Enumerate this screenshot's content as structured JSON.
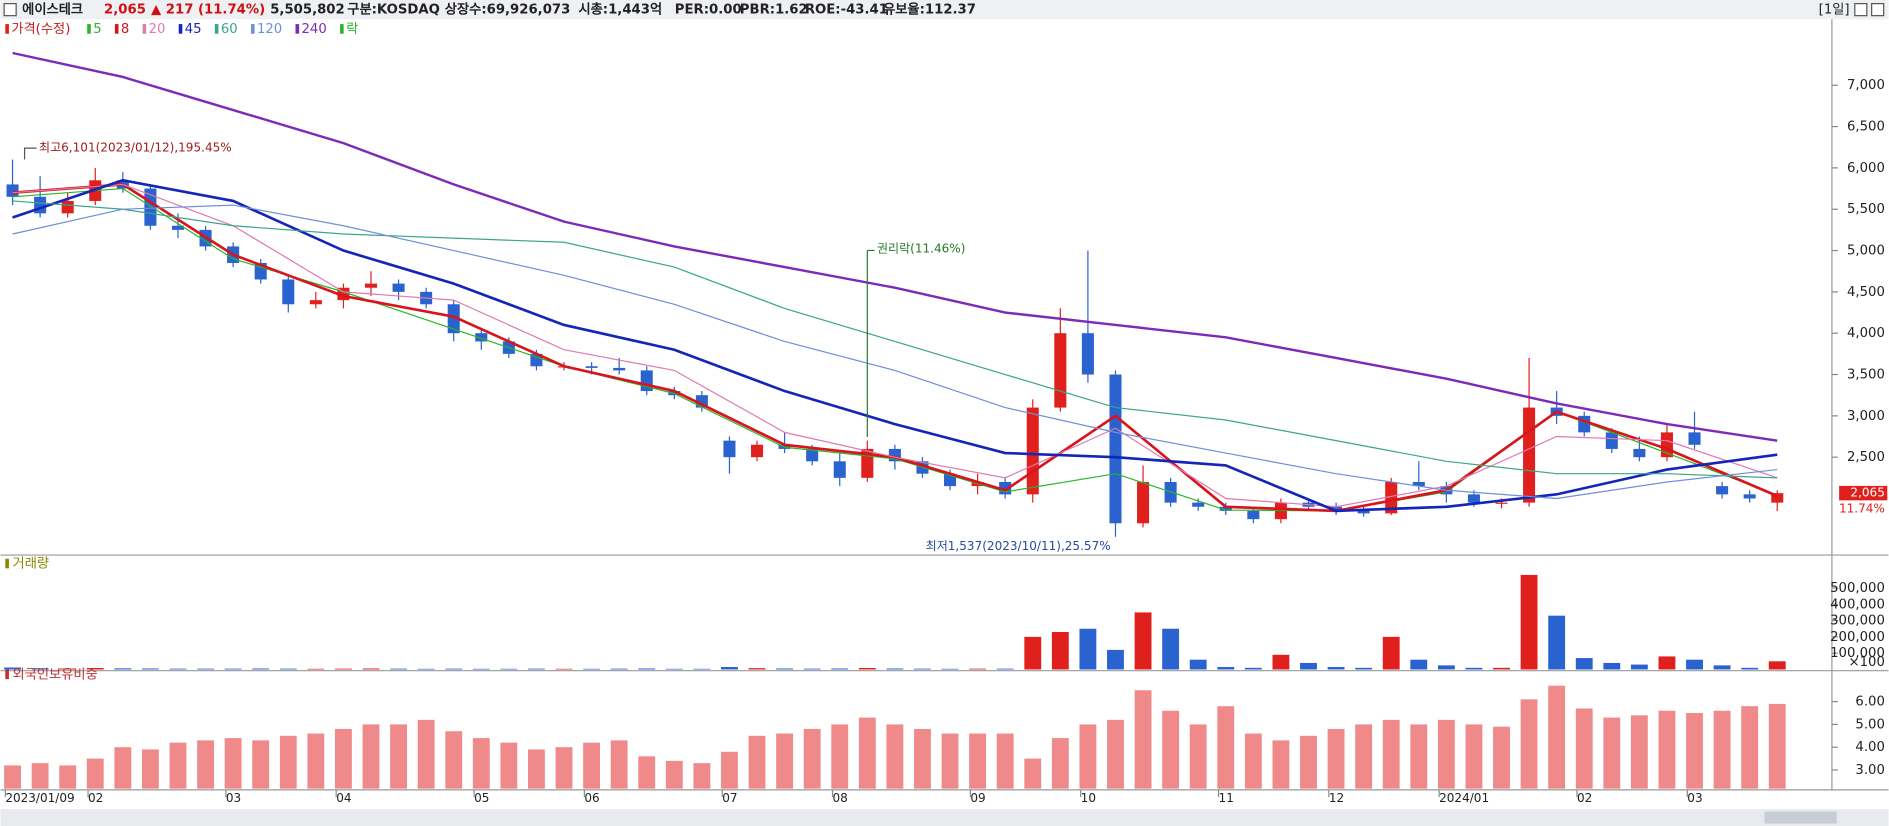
{
  "header": {
    "name": "에이스테크",
    "price": "2,065",
    "change": "▲ 217",
    "change_pct": "(11.74%)",
    "volume": "5,505,802",
    "market": "구분:KOSDAQ",
    "shares": "상장수:69,926,073",
    "cap": "시총:1,443억",
    "per": "PER:0.00",
    "pbr": "PBR:1.62",
    "roe": "ROE:-43.41",
    "reserve": "유보율:112.37",
    "period": "[1일]"
  },
  "chart_data": [
    {
      "type": "candlestick",
      "title": "가격(수정)",
      "legend_extra": "락",
      "up_color": "#e0201c",
      "down_color": "#2a62d0",
      "categories": [
        "2023/01/09",
        null,
        null,
        "02",
        null,
        null,
        null,
        null,
        "03",
        null,
        null,
        null,
        "04",
        null,
        null,
        null,
        null,
        "05",
        null,
        null,
        null,
        "06",
        null,
        null,
        null,
        null,
        "07",
        null,
        null,
        null,
        "08",
        null,
        null,
        null,
        null,
        "09",
        null,
        null,
        null,
        "10",
        null,
        null,
        null,
        null,
        "11",
        null,
        null,
        null,
        "12",
        null,
        null,
        null,
        "2024/01",
        null,
        null,
        null,
        null,
        "02",
        null,
        null,
        null,
        "03",
        null,
        null,
        null
      ],
      "open": [
        5800,
        5650,
        5450,
        5600,
        5850,
        5750,
        5300,
        5250,
        5050,
        4850,
        4650,
        4350,
        4400,
        4550,
        4600,
        4500,
        4350,
        4000,
        3900,
        3750,
        3600,
        3600,
        3580,
        3550,
        3300,
        3250,
        2700,
        2500,
        2650,
        2600,
        2450,
        2250,
        2600,
        2450,
        2300,
        2150,
        2200,
        2050,
        3100,
        4000,
        3500,
        1700,
        2200,
        1950,
        1900,
        1850,
        1750,
        1950,
        1900,
        1850,
        1820,
        2200,
        2150,
        2050,
        1950,
        1950,
        3100,
        3000,
        2800,
        2600,
        2500,
        2800,
        2150,
        2050,
        1950
      ],
      "high": [
        6101,
        5900,
        5700,
        6000,
        5950,
        5800,
        5450,
        5300,
        5100,
        4900,
        4700,
        4500,
        4600,
        4750,
        4650,
        4550,
        4400,
        4050,
        3950,
        3800,
        3650,
        3650,
        3700,
        3600,
        3350,
        3300,
        2750,
        2700,
        2800,
        2650,
        2550,
        2700,
        2650,
        2500,
        2350,
        2300,
        2250,
        3200,
        4300,
        5000,
        3550,
        2400,
        2250,
        2000,
        1950,
        1900,
        2000,
        2000,
        1950,
        1900,
        2250,
        2450,
        2200,
        2100,
        2000,
        3700,
        3300,
        3050,
        2850,
        2750,
        2900,
        3050,
        2200,
        2100,
        2100
      ],
      "low": [
        5550,
        5400,
        5400,
        5550,
        5700,
        5250,
        5150,
        5000,
        4800,
        4600,
        4250,
        4300,
        4300,
        4450,
        4400,
        4300,
        3900,
        3800,
        3700,
        3550,
        3550,
        3500,
        3500,
        3250,
        3200,
        3050,
        2300,
        2450,
        2550,
        2400,
        2150,
        2200,
        2350,
        2250,
        2100,
        2050,
        2000,
        1950,
        3050,
        3400,
        1537,
        1650,
        1900,
        1850,
        1800,
        1700,
        1700,
        1850,
        1800,
        1780,
        1800,
        2100,
        1950,
        1900,
        1880,
        1900,
        2900,
        2750,
        2550,
        2450,
        2450,
        2600,
        2000,
        1950,
        1848
      ],
      "close": [
        5650,
        5450,
        5600,
        5850,
        5750,
        5300,
        5250,
        5050,
        4850,
        4650,
        4350,
        4400,
        4550,
        4600,
        4500,
        4350,
        4000,
        3900,
        3750,
        3600,
        3600,
        3580,
        3550,
        3300,
        3250,
        3100,
        2500,
        2650,
        2600,
        2450,
        2250,
        2600,
        2450,
        2300,
        2150,
        2200,
        2050,
        3100,
        4000,
        3500,
        1700,
        2200,
        1950,
        1900,
        1850,
        1750,
        1950,
        1900,
        1850,
        1820,
        2200,
        2150,
        2050,
        1950,
        1950,
        3100,
        3000,
        2800,
        2600,
        2500,
        2800,
        2650,
        2050,
        2000,
        2065
      ],
      "series": [
        {
          "name": "5",
          "color": "#2bb52b",
          "width": 1,
          "x": [
            0,
            4,
            8,
            12,
            16,
            20,
            24,
            28,
            32,
            36,
            40,
            44,
            48,
            52,
            56,
            60,
            64
          ],
          "values": [
            5650,
            5750,
            4900,
            4500,
            4050,
            3600,
            3270,
            2620,
            2480,
            2080,
            2300,
            1860,
            1850,
            2080,
            3050,
            2550,
            2040
          ]
        },
        {
          "name": "8",
          "color": "#d8141c",
          "width": 2.2,
          "x": [
            0,
            4,
            8,
            12,
            16,
            20,
            24,
            28,
            32,
            36,
            40,
            44,
            48,
            52,
            56,
            60,
            64
          ],
          "values": [
            5700,
            5800,
            4950,
            4450,
            4200,
            3600,
            3300,
            2650,
            2500,
            2100,
            3000,
            1900,
            1850,
            2100,
            3050,
            2600,
            2030
          ]
        },
        {
          "name": "20",
          "color": "#e07ab0",
          "width": 1,
          "x": [
            0,
            4,
            8,
            12,
            16,
            20,
            24,
            28,
            32,
            36,
            40,
            44,
            48,
            52,
            56,
            60,
            64
          ],
          "values": [
            5700,
            5800,
            5300,
            4500,
            4400,
            3800,
            3550,
            2800,
            2500,
            2250,
            2850,
            2000,
            1900,
            2150,
            2750,
            2700,
            2250
          ]
        },
        {
          "name": "45",
          "color": "#1426b8",
          "width": 2.2,
          "x": [
            0,
            4,
            8,
            12,
            16,
            20,
            24,
            28,
            32,
            36,
            40,
            44,
            48,
            52,
            56,
            60,
            64
          ],
          "values": [
            5400,
            5850,
            5600,
            5000,
            4600,
            4100,
            3800,
            3300,
            2900,
            2550,
            2500,
            2400,
            1850,
            1900,
            2050,
            2350,
            2530
          ]
        },
        {
          "name": "60",
          "color": "#3aa58a",
          "width": 1,
          "x": [
            0,
            4,
            8,
            12,
            16,
            20,
            24,
            28,
            32,
            36,
            40,
            44,
            48,
            52,
            56,
            60,
            64
          ],
          "values": [
            5600,
            5500,
            5300,
            5200,
            5150,
            5100,
            4800,
            4300,
            3900,
            3500,
            3100,
            2950,
            2700,
            2450,
            2300,
            2300,
            2250
          ]
        },
        {
          "name": "120",
          "color": "#6f8fd8",
          "width": 1,
          "x": [
            0,
            4,
            8,
            12,
            16,
            20,
            24,
            28,
            32,
            36,
            40,
            44,
            48,
            52,
            56,
            60,
            64
          ],
          "values": [
            5200,
            5500,
            5550,
            5300,
            5000,
            4700,
            4350,
            3900,
            3550,
            3100,
            2800,
            2550,
            2300,
            2100,
            2000,
            2200,
            2350
          ]
        },
        {
          "name": "240",
          "color": "#7d2ab8",
          "width": 2,
          "x": [
            0,
            4,
            8,
            12,
            16,
            20,
            24,
            28,
            32,
            36,
            40,
            44,
            48,
            52,
            56,
            60,
            64
          ],
          "values": [
            7390,
            7100,
            6700,
            6300,
            5800,
            5350,
            5050,
            4800,
            4550,
            4250,
            4100,
            3950,
            3700,
            3450,
            3150,
            2900,
            2700
          ]
        }
      ],
      "ylim": [
        1330,
        7740
      ],
      "yticks": [
        {
          "value": 2500,
          "label": "2,500"
        },
        {
          "value": 3000,
          "label": "3,000"
        },
        {
          "value": 3500,
          "label": "3,500"
        },
        {
          "value": 4000,
          "label": "4,000"
        },
        {
          "value": 4500,
          "label": "4,500"
        },
        {
          "value": 5000,
          "label": "5,000"
        },
        {
          "value": 5500,
          "label": "5,500"
        },
        {
          "value": 6000,
          "label": "6,000"
        },
        {
          "value": 6500,
          "label": "6,500"
        },
        {
          "value": 7000,
          "label": "7,000"
        }
      ],
      "annotations": [
        "최고6,101(2023/01/12),195.45%",
        "권리락(11.46%)",
        "최저1,537(2023/10/11),25.57%",
        "2,065",
        "11.74%"
      ]
    },
    {
      "type": "bar",
      "title": "거래량",
      "unit_label": "×100",
      "title_color": "#8a8a00",
      "values": [
        12000,
        8000,
        6000,
        9000,
        7000,
        6000,
        5000,
        5000,
        5000,
        6000,
        5000,
        4000,
        5000,
        6000,
        5000,
        4000,
        5000,
        4000,
        4000,
        5000,
        4000,
        4000,
        5000,
        6000,
        4000,
        4000,
        15000,
        8000,
        6000,
        5000,
        6000,
        9000,
        6000,
        5000,
        4000,
        5000,
        5000,
        200000,
        230000,
        250000,
        120000,
        350000,
        250000,
        60000,
        15000,
        10000,
        90000,
        40000,
        15000,
        10000,
        200000,
        60000,
        25000,
        10000,
        10000,
        580000,
        330000,
        70000,
        40000,
        30000,
        80000,
        60000,
        25000,
        10000,
        50000
      ],
      "ylim": [
        0,
        650000
      ],
      "yticks": [
        {
          "value": 100000,
          "label": "100,000"
        },
        {
          "value": 200000,
          "label": "200,000"
        },
        {
          "value": 300000,
          "label": "300,000"
        },
        {
          "value": 400000,
          "label": "400,000"
        },
        {
          "value": 500000,
          "label": "500,000"
        }
      ]
    },
    {
      "type": "bar",
      "title": "외국인보유비중",
      "color": "#f08a8a",
      "title_color": "#c03030",
      "values": [
        3.2,
        3.3,
        3.2,
        3.5,
        4.0,
        3.9,
        4.2,
        4.3,
        4.4,
        4.3,
        4.5,
        4.6,
        4.8,
        5.0,
        5.0,
        5.2,
        4.7,
        4.4,
        4.2,
        3.9,
        4.0,
        4.2,
        4.3,
        3.6,
        3.4,
        3.3,
        3.8,
        4.5,
        4.6,
        4.8,
        5.0,
        5.3,
        5.0,
        4.8,
        4.6,
        4.6,
        4.6,
        3.5,
        4.4,
        5.0,
        5.2,
        6.5,
        5.6,
        5.0,
        5.8,
        4.6,
        4.3,
        4.5,
        4.8,
        5.0,
        5.2,
        5.0,
        5.2,
        5.0,
        4.9,
        6.1,
        6.7,
        5.7,
        5.3,
        5.4,
        5.6,
        5.5,
        5.6,
        5.8,
        5.9
      ],
      "ylim": [
        2.18,
        7.2
      ],
      "yticks": [
        {
          "value": 3,
          "label": "3.00"
        },
        {
          "value": 4,
          "label": "4.00"
        },
        {
          "value": 5,
          "label": "5.00"
        },
        {
          "value": 6,
          "label": "6.00"
        }
      ]
    }
  ]
}
